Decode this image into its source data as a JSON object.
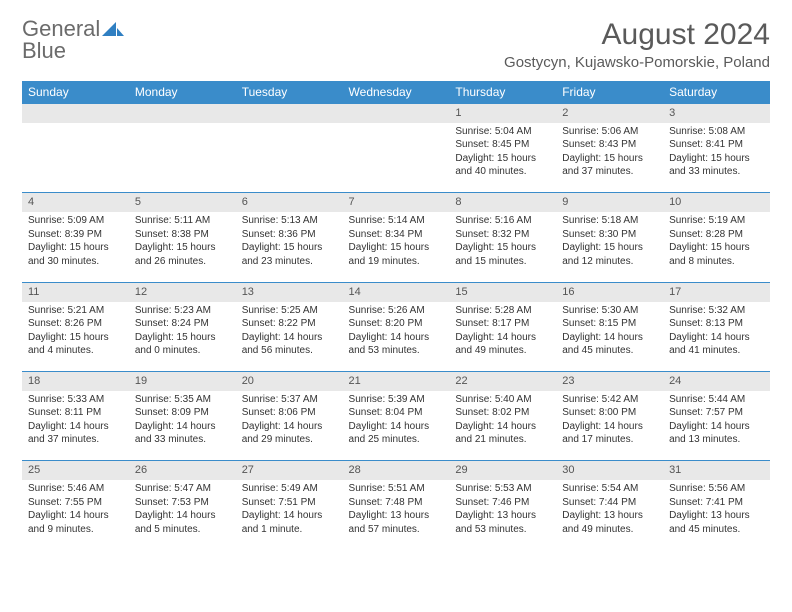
{
  "logo": {
    "line1": "General",
    "line2": "Blue"
  },
  "title": "August 2024",
  "subtitle": "Gostycyn, Kujawsko-Pomorskie, Poland",
  "colors": {
    "header_bg": "#3a8cca",
    "header_text": "#ffffff",
    "daynum_bg": "#e8e8e8",
    "row_border": "#3a8cca",
    "text": "#333333"
  },
  "weekdays": [
    "Sunday",
    "Monday",
    "Tuesday",
    "Wednesday",
    "Thursday",
    "Friday",
    "Saturday"
  ],
  "weeks": [
    [
      null,
      null,
      null,
      null,
      {
        "n": "1",
        "sr": "5:04 AM",
        "ss": "8:45 PM",
        "dl": "15 hours and 40 minutes."
      },
      {
        "n": "2",
        "sr": "5:06 AM",
        "ss": "8:43 PM",
        "dl": "15 hours and 37 minutes."
      },
      {
        "n": "3",
        "sr": "5:08 AM",
        "ss": "8:41 PM",
        "dl": "15 hours and 33 minutes."
      }
    ],
    [
      {
        "n": "4",
        "sr": "5:09 AM",
        "ss": "8:39 PM",
        "dl": "15 hours and 30 minutes."
      },
      {
        "n": "5",
        "sr": "5:11 AM",
        "ss": "8:38 PM",
        "dl": "15 hours and 26 minutes."
      },
      {
        "n": "6",
        "sr": "5:13 AM",
        "ss": "8:36 PM",
        "dl": "15 hours and 23 minutes."
      },
      {
        "n": "7",
        "sr": "5:14 AM",
        "ss": "8:34 PM",
        "dl": "15 hours and 19 minutes."
      },
      {
        "n": "8",
        "sr": "5:16 AM",
        "ss": "8:32 PM",
        "dl": "15 hours and 15 minutes."
      },
      {
        "n": "9",
        "sr": "5:18 AM",
        "ss": "8:30 PM",
        "dl": "15 hours and 12 minutes."
      },
      {
        "n": "10",
        "sr": "5:19 AM",
        "ss": "8:28 PM",
        "dl": "15 hours and 8 minutes."
      }
    ],
    [
      {
        "n": "11",
        "sr": "5:21 AM",
        "ss": "8:26 PM",
        "dl": "15 hours and 4 minutes."
      },
      {
        "n": "12",
        "sr": "5:23 AM",
        "ss": "8:24 PM",
        "dl": "15 hours and 0 minutes."
      },
      {
        "n": "13",
        "sr": "5:25 AM",
        "ss": "8:22 PM",
        "dl": "14 hours and 56 minutes."
      },
      {
        "n": "14",
        "sr": "5:26 AM",
        "ss": "8:20 PM",
        "dl": "14 hours and 53 minutes."
      },
      {
        "n": "15",
        "sr": "5:28 AM",
        "ss": "8:17 PM",
        "dl": "14 hours and 49 minutes."
      },
      {
        "n": "16",
        "sr": "5:30 AM",
        "ss": "8:15 PM",
        "dl": "14 hours and 45 minutes."
      },
      {
        "n": "17",
        "sr": "5:32 AM",
        "ss": "8:13 PM",
        "dl": "14 hours and 41 minutes."
      }
    ],
    [
      {
        "n": "18",
        "sr": "5:33 AM",
        "ss": "8:11 PM",
        "dl": "14 hours and 37 minutes."
      },
      {
        "n": "19",
        "sr": "5:35 AM",
        "ss": "8:09 PM",
        "dl": "14 hours and 33 minutes."
      },
      {
        "n": "20",
        "sr": "5:37 AM",
        "ss": "8:06 PM",
        "dl": "14 hours and 29 minutes."
      },
      {
        "n": "21",
        "sr": "5:39 AM",
        "ss": "8:04 PM",
        "dl": "14 hours and 25 minutes."
      },
      {
        "n": "22",
        "sr": "5:40 AM",
        "ss": "8:02 PM",
        "dl": "14 hours and 21 minutes."
      },
      {
        "n": "23",
        "sr": "5:42 AM",
        "ss": "8:00 PM",
        "dl": "14 hours and 17 minutes."
      },
      {
        "n": "24",
        "sr": "5:44 AM",
        "ss": "7:57 PM",
        "dl": "14 hours and 13 minutes."
      }
    ],
    [
      {
        "n": "25",
        "sr": "5:46 AM",
        "ss": "7:55 PM",
        "dl": "14 hours and 9 minutes."
      },
      {
        "n": "26",
        "sr": "5:47 AM",
        "ss": "7:53 PM",
        "dl": "14 hours and 5 minutes."
      },
      {
        "n": "27",
        "sr": "5:49 AM",
        "ss": "7:51 PM",
        "dl": "14 hours and 1 minute."
      },
      {
        "n": "28",
        "sr": "5:51 AM",
        "ss": "7:48 PM",
        "dl": "13 hours and 57 minutes."
      },
      {
        "n": "29",
        "sr": "5:53 AM",
        "ss": "7:46 PM",
        "dl": "13 hours and 53 minutes."
      },
      {
        "n": "30",
        "sr": "5:54 AM",
        "ss": "7:44 PM",
        "dl": "13 hours and 49 minutes."
      },
      {
        "n": "31",
        "sr": "5:56 AM",
        "ss": "7:41 PM",
        "dl": "13 hours and 45 minutes."
      }
    ]
  ]
}
